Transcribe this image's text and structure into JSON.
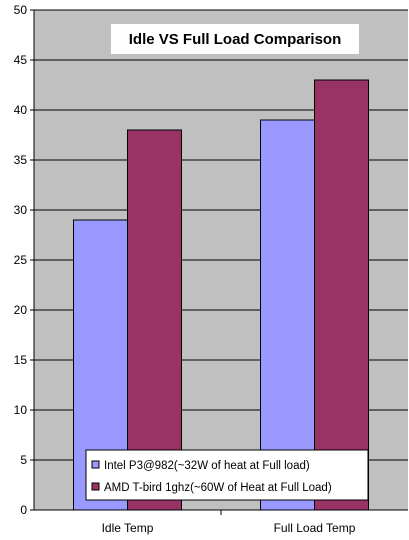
{
  "chart_data": {
    "type": "bar",
    "title": "Idle VS Full Load Comparison",
    "xlabel": "",
    "ylabel": "",
    "categories": [
      "Idle Temp",
      "Full Load Temp"
    ],
    "series": [
      {
        "name": "Intel P3@982(~32W of heat at Full load)",
        "values": [
          29,
          39
        ],
        "color": "#9999ff"
      },
      {
        "name": "AMD T-bird 1ghz(~60W of Heat at Full Load)",
        "values": [
          38,
          43
        ],
        "color": "#993366"
      }
    ],
    "ylim": [
      0,
      50
    ],
    "ytick_step": 5,
    "yticks": [
      "0",
      "5",
      "10",
      "15",
      "20",
      "25",
      "30",
      "35",
      "40",
      "45",
      "50"
    ],
    "grid": true,
    "plot_background": "#c0c0c0",
    "legend_position": "bottom-center"
  }
}
